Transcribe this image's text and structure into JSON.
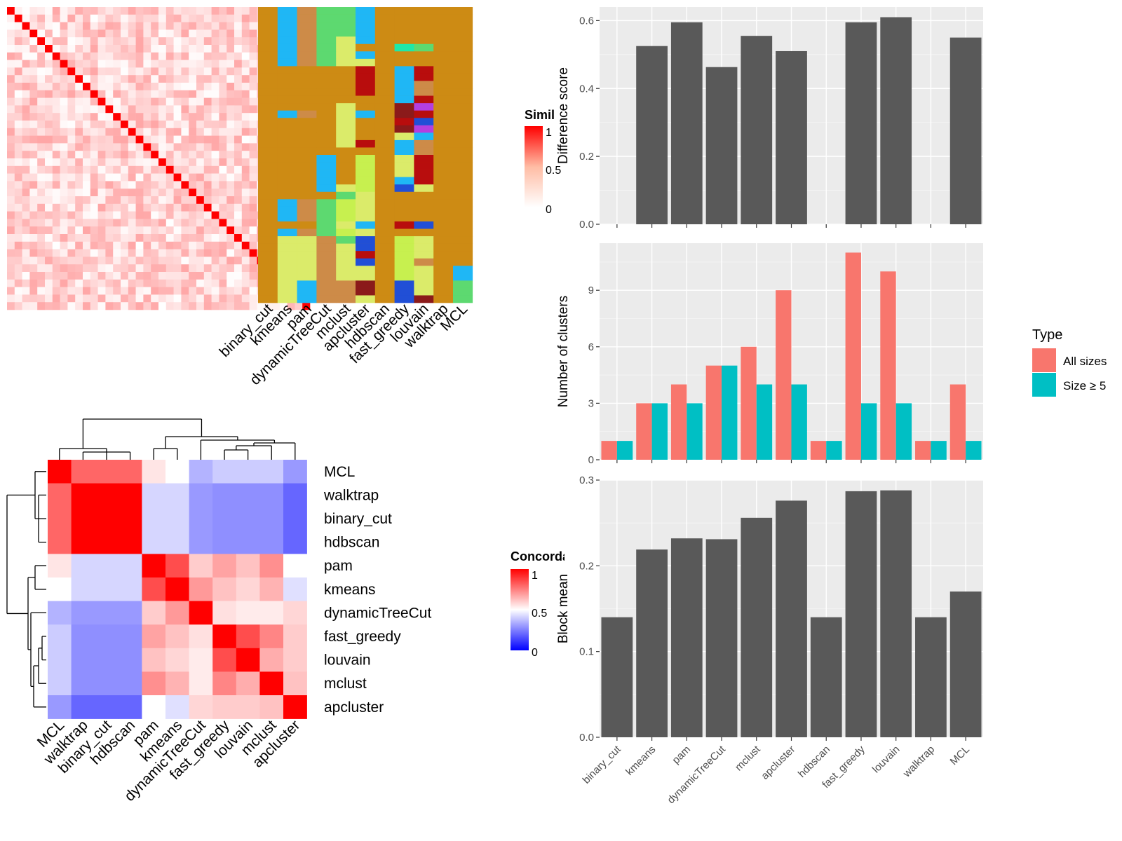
{
  "colors": {
    "bar_fill": "#595959",
    "panel_bg": "#ebebeb",
    "grid_major": "#ffffff",
    "all_sizes": "#f8766d",
    "size_ge5": "#00bfc4",
    "heat_red": "#ff0000",
    "heat_white": "#ffffff",
    "heat_blue": "#0000ff",
    "cluster_background": "#cd8b14",
    "cluster_palette": [
      "#1fb7f5",
      "#cd8b48",
      "#5dd970",
      "#dbeb6a",
      "#c7f04f",
      "#b80d0d",
      "#8b1a1a",
      "#b33fe0",
      "#214fd6",
      "#1fe8a8",
      "#c9a0a0"
    ]
  },
  "similarity_legend": {
    "title": "Similarity",
    "ticks": [
      "1",
      "0.5",
      "0"
    ]
  },
  "concordance_legend": {
    "title": "Concordance",
    "ticks": [
      "1",
      "0.5",
      "0"
    ]
  },
  "methods_top": [
    "binary_cut",
    "kmeans",
    "pam",
    "dynamicTreeCut",
    "mclust",
    "apcluster",
    "hdbscan",
    "fast_greedy",
    "louvain",
    "walktrap",
    "MCL"
  ],
  "methods_heatmap": [
    "MCL",
    "walktrap",
    "binary_cut",
    "hdbscan",
    "pam",
    "kmeans",
    "dynamicTreeCut",
    "fast_greedy",
    "louvain",
    "mclust",
    "apcluster"
  ],
  "bar_methods": [
    "binary_cut",
    "kmeans",
    "pam",
    "dynamicTreeCut",
    "mclust",
    "apcluster",
    "hdbscan",
    "fast_greedy",
    "louvain",
    "walktrap",
    "MCL"
  ],
  "chart_data": [
    {
      "type": "heatmap",
      "id": "similarity",
      "rows": 40,
      "cols": 40,
      "diagonal": 1,
      "off_diagonal_range": [
        0,
        0.35
      ]
    },
    {
      "type": "heatmap",
      "id": "cluster_assignments",
      "columns": [
        "binary_cut",
        "kmeans",
        "pam",
        "dynamicTreeCut",
        "mclust",
        "apcluster",
        "hdbscan",
        "fast_greedy",
        "louvain",
        "walktrap",
        "MCL"
      ],
      "rows": 40,
      "assignments": [
        [
          0,
          1,
          2,
          3,
          3,
          1,
          0,
          0,
          0,
          0,
          0
        ],
        [
          0,
          1,
          2,
          3,
          3,
          1,
          0,
          0,
          0,
          0,
          0
        ],
        [
          0,
          1,
          2,
          3,
          3,
          1,
          0,
          0,
          0,
          0,
          0
        ],
        [
          0,
          1,
          2,
          3,
          3,
          1,
          0,
          0,
          0,
          0,
          0
        ],
        [
          0,
          1,
          2,
          3,
          4,
          1,
          0,
          0,
          0,
          0,
          0
        ],
        [
          0,
          1,
          2,
          3,
          4,
          0,
          0,
          10,
          3,
          0,
          0
        ],
        [
          0,
          1,
          2,
          3,
          4,
          1,
          0,
          0,
          0,
          0,
          0
        ],
        [
          0,
          1,
          2,
          3,
          4,
          4,
          0,
          0,
          0,
          0,
          0
        ],
        [
          0,
          0,
          0,
          0,
          0,
          6,
          0,
          1,
          6,
          0,
          0
        ],
        [
          0,
          0,
          0,
          0,
          0,
          6,
          0,
          1,
          6,
          0,
          0
        ],
        [
          0,
          0,
          0,
          0,
          0,
          6,
          0,
          1,
          2,
          0,
          0
        ],
        [
          0,
          0,
          0,
          0,
          0,
          6,
          0,
          1,
          2,
          0,
          0
        ],
        [
          0,
          0,
          0,
          0,
          0,
          0,
          0,
          1,
          6,
          0,
          0
        ],
        [
          0,
          0,
          0,
          0,
          4,
          0,
          0,
          7,
          8,
          0,
          0
        ],
        [
          0,
          1,
          2,
          0,
          4,
          1,
          0,
          7,
          6,
          0,
          0
        ],
        [
          0,
          0,
          0,
          0,
          4,
          0,
          0,
          6,
          9,
          0,
          0
        ],
        [
          0,
          0,
          0,
          0,
          4,
          0,
          0,
          7,
          8,
          0,
          0
        ],
        [
          0,
          0,
          0,
          0,
          4,
          0,
          0,
          4,
          1,
          0,
          0
        ],
        [
          0,
          0,
          0,
          0,
          4,
          6,
          0,
          1,
          2,
          0,
          0
        ],
        [
          0,
          0,
          0,
          0,
          0,
          0,
          0,
          1,
          2,
          0,
          0
        ],
        [
          0,
          0,
          0,
          1,
          0,
          5,
          0,
          4,
          6,
          0,
          0
        ],
        [
          0,
          0,
          0,
          1,
          0,
          5,
          0,
          4,
          6,
          0,
          0
        ],
        [
          0,
          0,
          0,
          1,
          0,
          5,
          0,
          4,
          6,
          0,
          0
        ],
        [
          0,
          0,
          0,
          1,
          0,
          5,
          0,
          1,
          6,
          0,
          0
        ],
        [
          0,
          0,
          0,
          1,
          4,
          5,
          0,
          9,
          4,
          0,
          0
        ],
        [
          0,
          0,
          0,
          0,
          3,
          4,
          0,
          0,
          0,
          0,
          0
        ],
        [
          0,
          1,
          2,
          3,
          5,
          4,
          0,
          0,
          0,
          0,
          0
        ],
        [
          0,
          1,
          2,
          3,
          5,
          4,
          0,
          0,
          0,
          0,
          0
        ],
        [
          0,
          1,
          2,
          3,
          5,
          4,
          0,
          0,
          0,
          0,
          0
        ],
        [
          0,
          0,
          0,
          3,
          4,
          1,
          0,
          6,
          9,
          0,
          0
        ],
        [
          0,
          1,
          2,
          3,
          5,
          4,
          0,
          0,
          0,
          0,
          0
        ],
        [
          0,
          4,
          4,
          2,
          3,
          9,
          0,
          5,
          4,
          0,
          0
        ],
        [
          0,
          4,
          4,
          2,
          4,
          9,
          0,
          5,
          4,
          0,
          0
        ],
        [
          0,
          4,
          4,
          2,
          4,
          6,
          0,
          5,
          4,
          0,
          0
        ],
        [
          0,
          4,
          4,
          2,
          4,
          9,
          0,
          5,
          2,
          0,
          0
        ],
        [
          0,
          4,
          4,
          2,
          4,
          4,
          0,
          5,
          4,
          0,
          1
        ],
        [
          0,
          4,
          4,
          2,
          4,
          4,
          0,
          5,
          4,
          0,
          1
        ],
        [
          0,
          4,
          1,
          2,
          2,
          7,
          0,
          9,
          4,
          0,
          3
        ],
        [
          0,
          4,
          1,
          2,
          2,
          7,
          0,
          9,
          4,
          0,
          3
        ],
        [
          0,
          4,
          1,
          2,
          2,
          4,
          0,
          9,
          7,
          0,
          3
        ]
      ]
    },
    {
      "type": "heatmap",
      "id": "concordance",
      "labels": [
        "MCL",
        "walktrap",
        "binary_cut",
        "hdbscan",
        "pam",
        "kmeans",
        "dynamicTreeCut",
        "fast_greedy",
        "louvain",
        "mclust",
        "apcluster"
      ],
      "values": [
        [
          1.0,
          0.8,
          0.8,
          0.8,
          0.55,
          0.5,
          0.35,
          0.4,
          0.4,
          0.4,
          0.3
        ],
        [
          0.8,
          1.0,
          1.0,
          1.0,
          0.42,
          0.42,
          0.3,
          0.28,
          0.28,
          0.28,
          0.2
        ],
        [
          0.8,
          1.0,
          1.0,
          1.0,
          0.42,
          0.42,
          0.3,
          0.28,
          0.28,
          0.28,
          0.2
        ],
        [
          0.8,
          1.0,
          1.0,
          1.0,
          0.42,
          0.42,
          0.3,
          0.28,
          0.28,
          0.28,
          0.2
        ],
        [
          0.55,
          0.42,
          0.42,
          0.42,
          1.0,
          0.85,
          0.6,
          0.68,
          0.62,
          0.72,
          0.5
        ],
        [
          0.5,
          0.42,
          0.42,
          0.42,
          0.85,
          1.0,
          0.7,
          0.62,
          0.58,
          0.65,
          0.44
        ],
        [
          0.35,
          0.3,
          0.3,
          0.3,
          0.6,
          0.7,
          1.0,
          0.56,
          0.54,
          0.54,
          0.58
        ],
        [
          0.4,
          0.28,
          0.28,
          0.28,
          0.68,
          0.62,
          0.56,
          1.0,
          0.85,
          0.74,
          0.6
        ],
        [
          0.4,
          0.28,
          0.28,
          0.28,
          0.62,
          0.58,
          0.54,
          0.85,
          1.0,
          0.66,
          0.6
        ],
        [
          0.4,
          0.28,
          0.28,
          0.28,
          0.72,
          0.65,
          0.54,
          0.74,
          0.66,
          1.0,
          0.62
        ],
        [
          0.3,
          0.2,
          0.2,
          0.2,
          0.5,
          0.44,
          0.58,
          0.6,
          0.6,
          0.62,
          1.0
        ]
      ]
    },
    {
      "type": "bar",
      "id": "difference_score",
      "categories": [
        "binary_cut",
        "kmeans",
        "pam",
        "dynamicTreeCut",
        "mclust",
        "apcluster",
        "hdbscan",
        "fast_greedy",
        "louvain",
        "walktrap",
        "MCL"
      ],
      "values": [
        0,
        0.525,
        0.595,
        0.463,
        0.555,
        0.51,
        0,
        0.595,
        0.61,
        0,
        0.55
      ],
      "ylabel": "Difference score",
      "ylim": [
        0,
        0.64
      ],
      "yticks": [
        "0.0",
        "0.2",
        "0.4",
        "0.6"
      ],
      "grid": true
    },
    {
      "type": "bar",
      "id": "number_of_clusters",
      "categories": [
        "binary_cut",
        "kmeans",
        "pam",
        "dynamicTreeCut",
        "mclust",
        "apcluster",
        "hdbscan",
        "fast_greedy",
        "louvain",
        "walktrap",
        "MCL"
      ],
      "series": [
        {
          "name": "All sizes",
          "values": [
            1,
            3,
            4,
            5,
            6,
            9,
            1,
            11,
            10,
            1,
            4
          ]
        },
        {
          "name": "Size ≥ 5",
          "values": [
            1,
            3,
            3,
            5,
            4,
            4,
            1,
            3,
            3,
            1,
            1
          ]
        }
      ],
      "ylabel": "Number of clusters",
      "ylim": [
        0,
        11.5
      ],
      "yticks": [
        "0",
        "3",
        "6",
        "9"
      ],
      "legend_title": "Type",
      "legend_position": "right",
      "grid": true
    },
    {
      "type": "bar",
      "id": "block_mean",
      "categories": [
        "binary_cut",
        "kmeans",
        "pam",
        "dynamicTreeCut",
        "mclust",
        "apcluster",
        "hdbscan",
        "fast_greedy",
        "louvain",
        "walktrap",
        "MCL"
      ],
      "values": [
        0.14,
        0.219,
        0.232,
        0.231,
        0.256,
        0.276,
        0.14,
        0.287,
        0.288,
        0.14,
        0.17
      ],
      "ylabel": "Block mean",
      "ylim": [
        0,
        0.3
      ],
      "yticks": [
        "0.0",
        "0.1",
        "0.2",
        "0.3"
      ],
      "grid": true
    }
  ]
}
